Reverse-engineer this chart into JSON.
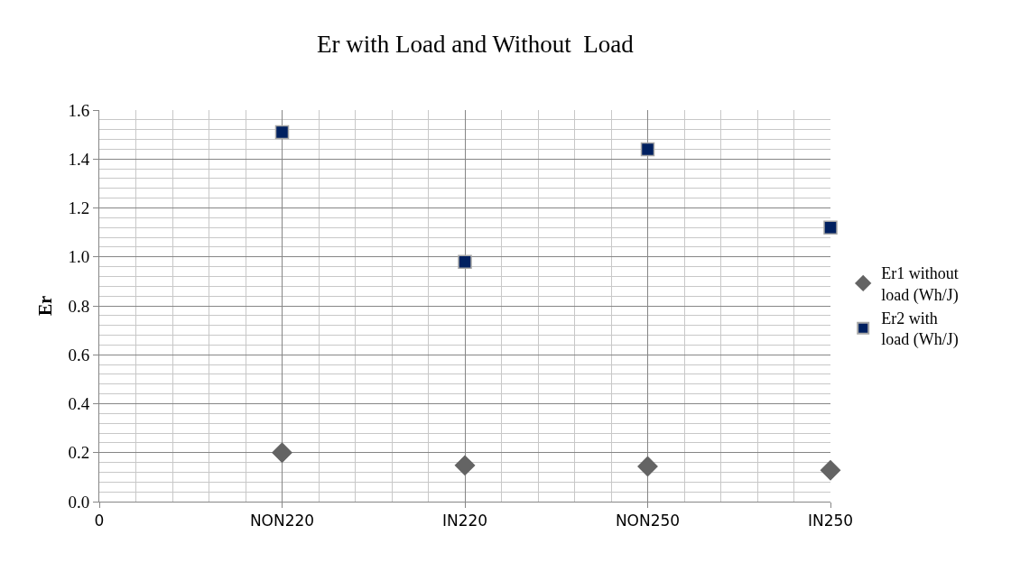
{
  "chart_data": {
    "type": "scatter",
    "title": "Er with Load and Without  Load",
    "ylabel": "Er",
    "categories": [
      "0",
      "NON220",
      "IN220",
      "NON250",
      "IN250"
    ],
    "ylim": [
      0,
      1.6
    ],
    "yticks": [
      {
        "value": 0,
        "label": "0.0"
      },
      {
        "value": 0.2,
        "label": "0.2"
      },
      {
        "value": 0.4,
        "label": "0.4"
      },
      {
        "value": 0.6,
        "label": "0.6"
      },
      {
        "value": 0.8,
        "label": "0.8"
      },
      {
        "value": 1.0,
        "label": "1.0"
      },
      {
        "value": 1.2,
        "label": "1.2"
      },
      {
        "value": 1.4,
        "label": "1.4"
      },
      {
        "value": 1.6,
        "label": "1.6"
      }
    ],
    "grid": true,
    "legend": "right",
    "series": [
      {
        "name": "Er1 without load (Wh/J)",
        "color": "#646464",
        "marker": "diamond",
        "values": [
          null,
          0.2,
          0.148,
          0.144,
          0.128
        ]
      },
      {
        "name": "Er2 with load (Wh/J)",
        "color": "#002060",
        "marker": "square",
        "values": [
          null,
          1.51,
          0.98,
          1.44,
          1.12
        ]
      }
    ]
  }
}
